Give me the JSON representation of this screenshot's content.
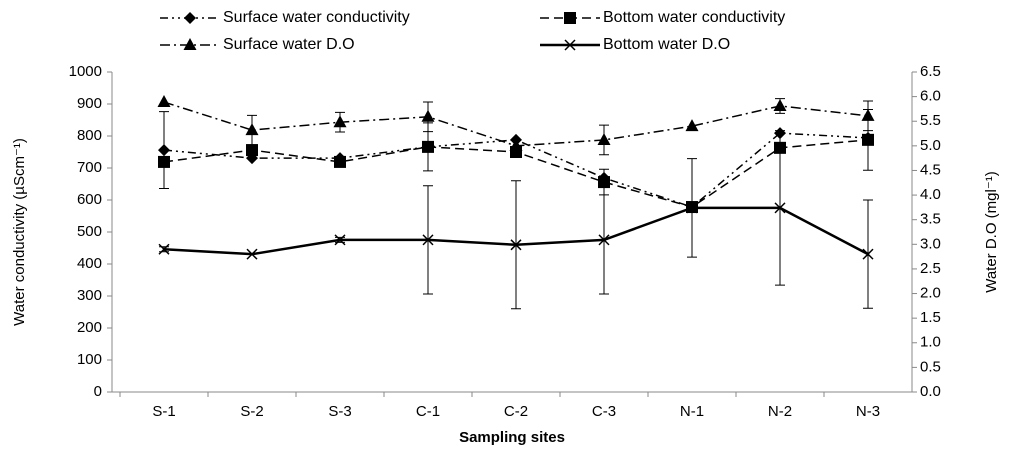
{
  "chart_data": {
    "type": "line",
    "x_label": "Sampling sites",
    "y_label": "Water conductivity (µScm⁻¹)",
    "y2_label": "Water D.O (mgl⁻¹)",
    "categories": [
      "S-1",
      "S-2",
      "S-3",
      "C-1",
      "C-2",
      "C-3",
      "N-1",
      "N-2",
      "N-3"
    ],
    "ylim": [
      0,
      1000
    ],
    "yticks": [
      0,
      100,
      200,
      300,
      400,
      500,
      600,
      700,
      800,
      900,
      1000
    ],
    "y2lim": [
      0,
      6.5
    ],
    "y2ticks": [
      {
        "value": 0,
        "label": "0.0"
      },
      0.5,
      {
        "value": 1,
        "label": "1.0"
      },
      1.5,
      {
        "value": 2,
        "label": "2.0"
      },
      2.5,
      {
        "value": 3,
        "label": "3.0"
      },
      3.5,
      {
        "value": 4,
        "label": "4.0"
      },
      4.5,
      {
        "value": 5,
        "label": "5.0"
      },
      5.5,
      {
        "value": 6,
        "label": "6.0"
      },
      6.5
    ],
    "series": [
      {
        "name": "Surface water conductivity",
        "color": "#000000",
        "marker": "diamond",
        "dash": "8,4,2,4,2,4",
        "values": [
          756,
          731,
          731,
          766,
          788,
          669,
          578,
          809,
          794
        ],
        "errors": [
          120,
          null,
          null,
          null,
          null,
          null,
          null,
          null,
          null
        ]
      },
      {
        "name": "Bottom water conductivity",
        "color": "#000000",
        "marker": "square",
        "dash": "9,5",
        "values": [
          719,
          756,
          719,
          766,
          750,
          656,
          578,
          763,
          788
        ],
        "errors": [
          null,
          null,
          null,
          75,
          null,
          40,
          null,
          null,
          95
        ]
      },
      {
        "name": "Surface water D.O",
        "color": "#000000",
        "marker": "triangle",
        "dash": "10,4,2,4",
        "axis": "y2",
        "values": [
          5.89,
          5.32,
          5.48,
          5.59,
          5.0,
          5.12,
          5.4,
          5.81,
          5.61
        ],
        "errors": [
          null,
          0.3,
          0.2,
          0.3,
          null,
          0.3,
          null,
          0.15,
          0.3
        ]
      },
      {
        "name": "Bottom water D.O",
        "color": "#000000",
        "marker": "x",
        "dash": "",
        "axis": "y2",
        "values": [
          2.9,
          2.8,
          3.09,
          3.09,
          2.99,
          3.09,
          3.74,
          3.74,
          2.8
        ],
        "errors": [
          0.05,
          null,
          0.05,
          1.1,
          1.3,
          1.1,
          1.0,
          1.57,
          1.1
        ]
      }
    ]
  }
}
